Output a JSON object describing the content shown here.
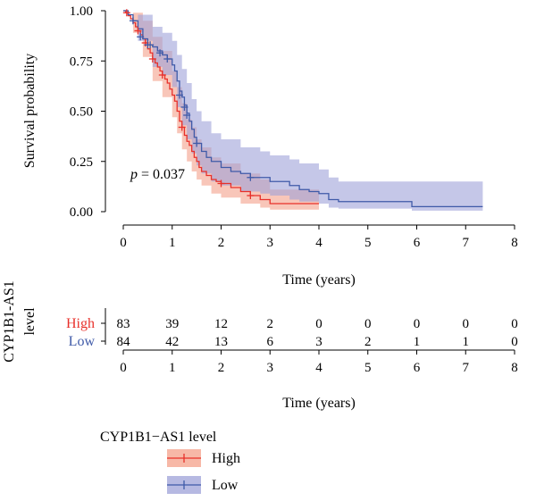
{
  "chart_data": {
    "type": "line",
    "subtype": "kaplan-meier survival curve with risk table",
    "ylabel": "Survival probability",
    "xlabel": "Time (years)",
    "xlim": [
      0,
      8
    ],
    "ylim": [
      0,
      1
    ],
    "x_ticks": [
      "0",
      "1",
      "2",
      "3",
      "4",
      "5",
      "6",
      "7",
      "8"
    ],
    "y_ticks": [
      "0.00",
      "0.25",
      "0.50",
      "0.75",
      "1.00"
    ],
    "annotation": {
      "prefix": "p",
      "value": " = 0.037",
      "x": 0.15,
      "y": 0.18
    },
    "series": [
      {
        "name": "High",
        "color": "#e8302a",
        "band_color": "#f4a08a",
        "steps": [
          [
            0,
            1.0
          ],
          [
            0.05,
            0.99
          ],
          [
            0.1,
            0.975
          ],
          [
            0.15,
            0.96
          ],
          [
            0.2,
            0.94
          ],
          [
            0.25,
            0.92
          ],
          [
            0.3,
            0.9
          ],
          [
            0.35,
            0.88
          ],
          [
            0.4,
            0.86
          ],
          [
            0.45,
            0.84
          ],
          [
            0.5,
            0.81
          ],
          [
            0.55,
            0.79
          ],
          [
            0.6,
            0.76
          ],
          [
            0.65,
            0.74
          ],
          [
            0.7,
            0.72
          ],
          [
            0.75,
            0.7
          ],
          [
            0.8,
            0.68
          ],
          [
            0.85,
            0.66
          ],
          [
            0.9,
            0.64
          ],
          [
            0.95,
            0.61
          ],
          [
            1.0,
            0.58
          ],
          [
            1.05,
            0.55
          ],
          [
            1.1,
            0.5
          ],
          [
            1.15,
            0.45
          ],
          [
            1.2,
            0.42
          ],
          [
            1.25,
            0.38
          ],
          [
            1.3,
            0.35
          ],
          [
            1.35,
            0.33
          ],
          [
            1.4,
            0.3
          ],
          [
            1.45,
            0.27
          ],
          [
            1.5,
            0.25
          ],
          [
            1.55,
            0.22
          ],
          [
            1.6,
            0.2
          ],
          [
            1.7,
            0.18
          ],
          [
            1.8,
            0.16
          ],
          [
            1.9,
            0.15
          ],
          [
            2.0,
            0.14
          ],
          [
            2.2,
            0.12
          ],
          [
            2.4,
            0.1
          ],
          [
            2.6,
            0.08
          ],
          [
            2.8,
            0.06
          ],
          [
            3.0,
            0.04
          ],
          [
            4.0,
            0.04
          ]
        ],
        "upper": [
          [
            0,
            1.0
          ],
          [
            0.2,
            0.99
          ],
          [
            0.4,
            0.95
          ],
          [
            0.6,
            0.87
          ],
          [
            0.8,
            0.8
          ],
          [
            1.0,
            0.7
          ],
          [
            1.1,
            0.62
          ],
          [
            1.2,
            0.54
          ],
          [
            1.3,
            0.46
          ],
          [
            1.4,
            0.42
          ],
          [
            1.5,
            0.36
          ],
          [
            1.6,
            0.32
          ],
          [
            1.8,
            0.27
          ],
          [
            2.0,
            0.24
          ],
          [
            2.4,
            0.19
          ],
          [
            2.8,
            0.16
          ],
          [
            3.0,
            0.11
          ],
          [
            4.0,
            0.11
          ]
        ],
        "lower": [
          [
            0,
            1.0
          ],
          [
            0.2,
            0.89
          ],
          [
            0.4,
            0.77
          ],
          [
            0.6,
            0.65
          ],
          [
            0.8,
            0.57
          ],
          [
            1.0,
            0.47
          ],
          [
            1.1,
            0.39
          ],
          [
            1.2,
            0.31
          ],
          [
            1.3,
            0.25
          ],
          [
            1.4,
            0.2
          ],
          [
            1.5,
            0.16
          ],
          [
            1.6,
            0.13
          ],
          [
            1.8,
            0.09
          ],
          [
            2.0,
            0.07
          ],
          [
            2.4,
            0.04
          ],
          [
            2.8,
            0.02
          ],
          [
            3.0,
            0.01
          ],
          [
            4.0,
            0.01
          ]
        ],
        "censor": [
          [
            0.07,
            0.99
          ],
          [
            0.3,
            0.9
          ],
          [
            0.45,
            0.84
          ],
          [
            0.6,
            0.76
          ],
          [
            0.8,
            0.68
          ],
          [
            1.2,
            0.42
          ],
          [
            2.0,
            0.14
          ],
          [
            2.6,
            0.08
          ]
        ]
      },
      {
        "name": "Low",
        "color": "#3f5aa8",
        "band_color": "#9ea2d8",
        "steps": [
          [
            0,
            1.0
          ],
          [
            0.1,
            0.98
          ],
          [
            0.2,
            0.95
          ],
          [
            0.3,
            0.91
          ],
          [
            0.4,
            0.86
          ],
          [
            0.5,
            0.83
          ],
          [
            0.6,
            0.82
          ],
          [
            0.7,
            0.8
          ],
          [
            0.8,
            0.78
          ],
          [
            0.9,
            0.76
          ],
          [
            1.0,
            0.73
          ],
          [
            1.05,
            0.7
          ],
          [
            1.1,
            0.65
          ],
          [
            1.15,
            0.6
          ],
          [
            1.2,
            0.57
          ],
          [
            1.25,
            0.53
          ],
          [
            1.3,
            0.49
          ],
          [
            1.35,
            0.45
          ],
          [
            1.4,
            0.41
          ],
          [
            1.45,
            0.37
          ],
          [
            1.5,
            0.34
          ],
          [
            1.6,
            0.3
          ],
          [
            1.7,
            0.27
          ],
          [
            1.8,
            0.25
          ],
          [
            2.0,
            0.22
          ],
          [
            2.2,
            0.2
          ],
          [
            2.4,
            0.19
          ],
          [
            2.6,
            0.17
          ],
          [
            2.8,
            0.17
          ],
          [
            3.0,
            0.15
          ],
          [
            3.4,
            0.13
          ],
          [
            3.6,
            0.11
          ],
          [
            3.8,
            0.1
          ],
          [
            4.0,
            0.09
          ],
          [
            4.2,
            0.06
          ],
          [
            4.4,
            0.05
          ],
          [
            5.0,
            0.05
          ],
          [
            5.8,
            0.05
          ],
          [
            5.9,
            0.025
          ],
          [
            7.0,
            0.025
          ],
          [
            7.35,
            0.025
          ]
        ],
        "upper": [
          [
            0,
            1.0
          ],
          [
            0.3,
            0.98
          ],
          [
            0.6,
            0.92
          ],
          [
            0.8,
            0.89
          ],
          [
            1.0,
            0.85
          ],
          [
            1.1,
            0.78
          ],
          [
            1.2,
            0.71
          ],
          [
            1.3,
            0.64
          ],
          [
            1.4,
            0.56
          ],
          [
            1.5,
            0.5
          ],
          [
            1.6,
            0.45
          ],
          [
            1.8,
            0.39
          ],
          [
            2.0,
            0.36
          ],
          [
            2.4,
            0.32
          ],
          [
            2.8,
            0.3
          ],
          [
            3.0,
            0.28
          ],
          [
            3.4,
            0.26
          ],
          [
            3.6,
            0.24
          ],
          [
            4.0,
            0.21
          ],
          [
            4.2,
            0.17
          ],
          [
            4.4,
            0.15
          ],
          [
            5.8,
            0.15
          ],
          [
            5.9,
            0.15
          ],
          [
            7.35,
            0.15
          ]
        ],
        "lower": [
          [
            0,
            1.0
          ],
          [
            0.3,
            0.85
          ],
          [
            0.6,
            0.72
          ],
          [
            0.8,
            0.68
          ],
          [
            1.0,
            0.62
          ],
          [
            1.1,
            0.52
          ],
          [
            1.2,
            0.43
          ],
          [
            1.3,
            0.36
          ],
          [
            1.4,
            0.29
          ],
          [
            1.5,
            0.23
          ],
          [
            1.6,
            0.19
          ],
          [
            1.8,
            0.15
          ],
          [
            2.0,
            0.13
          ],
          [
            2.4,
            0.1
          ],
          [
            2.8,
            0.09
          ],
          [
            3.0,
            0.08
          ],
          [
            3.4,
            0.06
          ],
          [
            3.6,
            0.05
          ],
          [
            4.0,
            0.04
          ],
          [
            4.2,
            0.02
          ],
          [
            4.4,
            0.015
          ],
          [
            5.8,
            0.015
          ],
          [
            5.9,
            0.005
          ],
          [
            7.35,
            0.005
          ]
        ],
        "censor": [
          [
            0.2,
            0.95
          ],
          [
            0.35,
            0.87
          ],
          [
            0.5,
            0.83
          ],
          [
            0.55,
            0.83
          ],
          [
            0.75,
            0.79
          ],
          [
            0.9,
            0.76
          ],
          [
            1.15,
            0.58
          ],
          [
            1.25,
            0.52
          ],
          [
            1.3,
            0.48
          ],
          [
            1.5,
            0.34
          ],
          [
            2.6,
            0.17
          ]
        ]
      }
    ],
    "risk_table": {
      "title": "CYP1B1-AS1 level",
      "times": [
        "0",
        "1",
        "2",
        "3",
        "4",
        "5",
        "6",
        "7",
        "8"
      ],
      "xlabel": "Time (years)",
      "rows": [
        {
          "name": "High",
          "color": "#e8302a",
          "values": [
            "83",
            "39",
            "12",
            "2",
            "0",
            "0",
            "0",
            "0",
            "0"
          ]
        },
        {
          "name": "Low",
          "color": "#3f5aa8",
          "values": [
            "84",
            "42",
            "13",
            "6",
            "3",
            "2",
            "1",
            "1",
            "0"
          ]
        }
      ]
    },
    "legend": {
      "title": "CYP1B1−AS1 level",
      "placement": "bottom-left",
      "items": [
        "High",
        "Low"
      ]
    }
  }
}
